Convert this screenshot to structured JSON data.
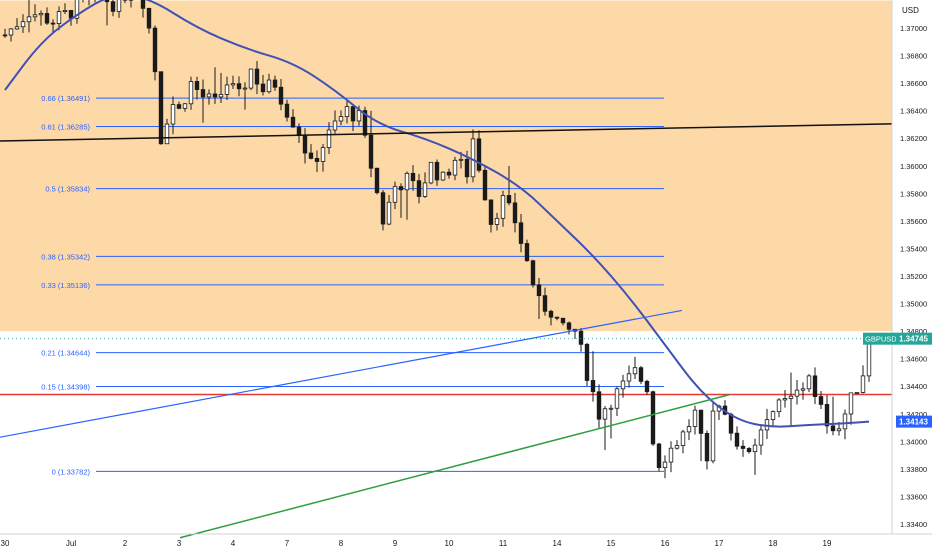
{
  "chart_data": {
    "type": "candlestick",
    "symbol": "GBPUSD",
    "currency": "USD",
    "last_price": "1.34745",
    "ma_value": "1.34143",
    "ylim": [
      1.333,
      1.372
    ],
    "y_ticks": [
      "1.37000",
      "1.36800",
      "1.36600",
      "1.36400",
      "1.36200",
      "1.36000",
      "1.35800",
      "1.35600",
      "1.35400",
      "1.35200",
      "1.35000",
      "1.34800",
      "1.34600",
      "1.34400",
      "1.34200",
      "1.34000",
      "1.33800",
      "1.33600",
      "1.33400"
    ],
    "x_ticks": [
      {
        "label": "30",
        "i": 0
      },
      {
        "label": "Jul",
        "i": 11
      },
      {
        "label": "2",
        "i": 20
      },
      {
        "label": "3",
        "i": 29
      },
      {
        "label": "4",
        "i": 38
      },
      {
        "label": "7",
        "i": 47
      },
      {
        "label": "8",
        "i": 56
      },
      {
        "label": "9",
        "i": 65
      },
      {
        "label": "10",
        "i": 74
      },
      {
        "label": "11",
        "i": 83
      },
      {
        "label": "14",
        "i": 92
      },
      {
        "label": "15",
        "i": 101
      },
      {
        "label": "16",
        "i": 110
      },
      {
        "label": "17",
        "i": 119
      },
      {
        "label": "18",
        "i": 128
      },
      {
        "label": "19",
        "i": 137
      }
    ],
    "fib_levels": [
      {
        "label": "0.66 (1.36491)",
        "value": 1.36491
      },
      {
        "label": "0.61 (1.36285)",
        "value": 1.36285
      },
      {
        "label": "0.5 (1.35834)",
        "value": 1.35834
      },
      {
        "label": "0.38 (1.35342)",
        "value": 1.35342
      },
      {
        "label": "0.33 (1.35136)",
        "value": 1.35136
      },
      {
        "label": "0.21 (1.34644)",
        "value": 1.34644
      },
      {
        "label": "0.15 (1.34398)",
        "value": 1.34398
      },
      {
        "label": "0 (1.33782)",
        "value": 1.33782
      }
    ],
    "supply_zone": {
      "from": 1.348,
      "to": 1.372,
      "color": "#fdd9a8"
    },
    "horizontal_line": {
      "value": 1.3434,
      "color": "#e53935"
    },
    "colors": {
      "up": "#1a1a1a",
      "down": "#1a1a1a",
      "fib": "#2962ff",
      "ma": "#3f51b5",
      "trend_black": "#111111",
      "trend_blue": "#2962ff",
      "trend_green": "#2e9e3e",
      "price_badge": "#26a69a",
      "ma_badge": "#2962ff"
    },
    "anchors": [
      [
        0,
        1.3695
      ],
      [
        4,
        1.3712
      ],
      [
        8,
        1.3705
      ],
      [
        11,
        1.3712
      ],
      [
        15,
        1.3725
      ],
      [
        18,
        1.3718
      ],
      [
        21,
        1.3728
      ],
      [
        23,
        1.372
      ],
      [
        24,
        1.37
      ],
      [
        25,
        1.367
      ],
      [
        26,
        1.362
      ],
      [
        27,
        1.3635
      ],
      [
        28,
        1.3645
      ],
      [
        29,
        1.364
      ],
      [
        31,
        1.366
      ],
      [
        33,
        1.365
      ],
      [
        35,
        1.3645
      ],
      [
        37,
        1.366
      ],
      [
        39,
        1.365
      ],
      [
        41,
        1.367
      ],
      [
        43,
        1.3655
      ],
      [
        45,
        1.366
      ],
      [
        47,
        1.364
      ],
      [
        49,
        1.3625
      ],
      [
        51,
        1.36
      ],
      [
        53,
        1.3615
      ],
      [
        55,
        1.363
      ],
      [
        57,
        1.364
      ],
      [
        59,
        1.3635
      ],
      [
        61,
        1.36
      ],
      [
        63,
        1.356
      ],
      [
        65,
        1.3585
      ],
      [
        67,
        1.359
      ],
      [
        69,
        1.358
      ],
      [
        71,
        1.36
      ],
      [
        73,
        1.359
      ],
      [
        75,
        1.3605
      ],
      [
        77,
        1.3595
      ],
      [
        78,
        1.362
      ],
      [
        79,
        1.36
      ],
      [
        81,
        1.356
      ],
      [
        83,
        1.3575
      ],
      [
        85,
        1.356
      ],
      [
        87,
        1.353
      ],
      [
        89,
        1.35
      ],
      [
        91,
        1.3495
      ],
      [
        93,
        1.348
      ],
      [
        95,
        1.348
      ],
      [
        97,
        1.345
      ],
      [
        99,
        1.342
      ],
      [
        101,
        1.343
      ],
      [
        103,
        1.344
      ],
      [
        105,
        1.345
      ],
      [
        107,
        1.344
      ],
      [
        108,
        1.34
      ],
      [
        109,
        1.3385
      ],
      [
        111,
        1.3395
      ],
      [
        113,
        1.3405
      ],
      [
        115,
        1.342
      ],
      [
        117,
        1.338
      ],
      [
        118,
        1.342
      ],
      [
        119,
        1.343
      ],
      [
        121,
        1.341
      ],
      [
        123,
        1.339
      ],
      [
        125,
        1.34
      ],
      [
        127,
        1.342
      ],
      [
        129,
        1.3425
      ],
      [
        131,
        1.343
      ],
      [
        133,
        1.344
      ],
      [
        134,
        1.345
      ],
      [
        135,
        1.343
      ],
      [
        137,
        1.3415
      ],
      [
        139,
        1.341
      ],
      [
        141,
        1.343
      ],
      [
        143,
        1.345
      ],
      [
        144,
        1.34745
      ]
    ],
    "ma_points": [
      [
        0,
        1.3655
      ],
      [
        6,
        1.369
      ],
      [
        12,
        1.371
      ],
      [
        18,
        1.3725
      ],
      [
        24,
        1.3722
      ],
      [
        32,
        1.37
      ],
      [
        40,
        1.3685
      ],
      [
        48,
        1.3675
      ],
      [
        55,
        1.3655
      ],
      [
        62,
        1.363
      ],
      [
        70,
        1.362
      ],
      [
        78,
        1.3605
      ],
      [
        86,
        1.3585
      ],
      [
        92,
        1.356
      ],
      [
        98,
        1.3535
      ],
      [
        104,
        1.3505
      ],
      [
        110,
        1.347
      ],
      [
        116,
        1.3435
      ],
      [
        122,
        1.3415
      ],
      [
        128,
        1.341
      ],
      [
        134,
        1.3412
      ],
      [
        140,
        1.3413
      ],
      [
        144,
        1.34143
      ]
    ],
    "trend_black": [
      [
        0,
        1.3618
      ],
      [
        932,
        1.3631
      ]
    ],
    "trend_blue": [
      [
        0,
        1.3403
      ],
      [
        682,
        1.3495
      ]
    ],
    "trend_green": [
      [
        180,
        1.333
      ],
      [
        730,
        1.3434
      ]
    ]
  }
}
